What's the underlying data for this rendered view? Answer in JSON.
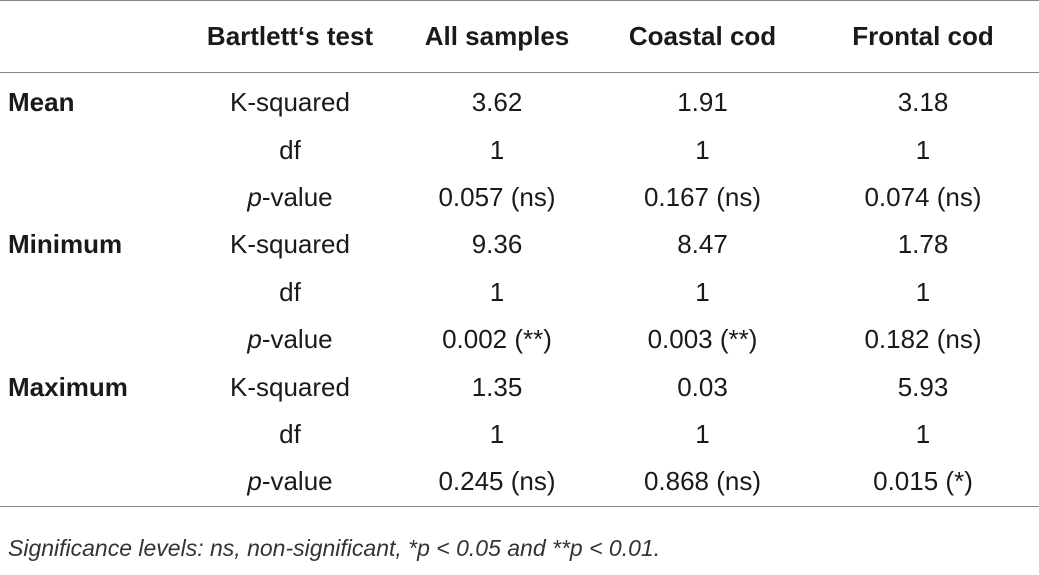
{
  "table": {
    "headers": [
      "",
      "Bartlett‘s test",
      "All samples",
      "Coastal cod",
      "Frontal cod"
    ],
    "rows": [
      {
        "group": "Mean",
        "stat_italic": "",
        "stat": "K-squared",
        "all": "3.62",
        "coastal": "1.91",
        "frontal": "3.18"
      },
      {
        "group": "",
        "stat_italic": "",
        "stat": "df",
        "all": "1",
        "coastal": "1",
        "frontal": "1"
      },
      {
        "group": "",
        "stat_italic": "p",
        "stat": "-value",
        "all": "0.057 (ns)",
        "coastal": "0.167 (ns)",
        "frontal": "0.074 (ns)"
      },
      {
        "group": "Minimum",
        "stat_italic": "",
        "stat": "K-squared",
        "all": "9.36",
        "coastal": "8.47",
        "frontal": "1.78"
      },
      {
        "group": "",
        "stat_italic": "",
        "stat": "df",
        "all": "1",
        "coastal": "1",
        "frontal": "1"
      },
      {
        "group": "",
        "stat_italic": "p",
        "stat": "-value",
        "all": "0.002 (**)",
        "coastal": "0.003 (**)",
        "frontal": "0.182 (ns)"
      },
      {
        "group": "Maximum",
        "stat_italic": "",
        "stat": "K-squared",
        "all": "1.35",
        "coastal": "0.03",
        "frontal": "5.93"
      },
      {
        "group": "",
        "stat_italic": "",
        "stat": "df",
        "all": "1",
        "coastal": "1",
        "frontal": "1"
      },
      {
        "group": "",
        "stat_italic": "p",
        "stat": "-value",
        "all": "0.245 (ns)",
        "coastal": "0.868 (ns)",
        "frontal": "0.015 (*)"
      }
    ]
  },
  "footnote": "Significance levels: ns, non-significant, *p < 0.05 and **p < 0.01."
}
